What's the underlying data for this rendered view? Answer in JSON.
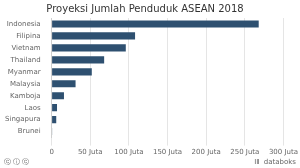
{
  "chart_data": {
    "type": "bar",
    "orientation": "horizontal",
    "title": "Proyeksi Jumlah Penduduk ASEAN 2018",
    "categories": [
      "Indonesia",
      "Filipina",
      "Vietnam",
      "Thailand",
      "Myanmar",
      "Malaysia",
      "Kamboja",
      "Laos",
      "Singapura",
      "Brunei"
    ],
    "values": [
      268,
      108,
      96,
      68,
      52,
      31,
      16,
      7,
      6,
      0.5
    ],
    "color": "#2e5070",
    "xlim": [
      0,
      300
    ],
    "xticks": [
      0,
      {
        "value": 50,
        "label": "50 Juta"
      },
      {
        "value": 100,
        "label": "100 Juta"
      },
      {
        "value": 150,
        "label": "150 Juta"
      },
      {
        "value": 200,
        "label": "200 Juta"
      },
      {
        "value": 250,
        "label": "250 Juta"
      },
      {
        "value": 300,
        "label": "300 Juta"
      }
    ],
    "grid": true,
    "annotations": [
      "ⓒ ⓘ ⓒ",
      "ⅠⅡ",
      "databoks"
    ]
  }
}
